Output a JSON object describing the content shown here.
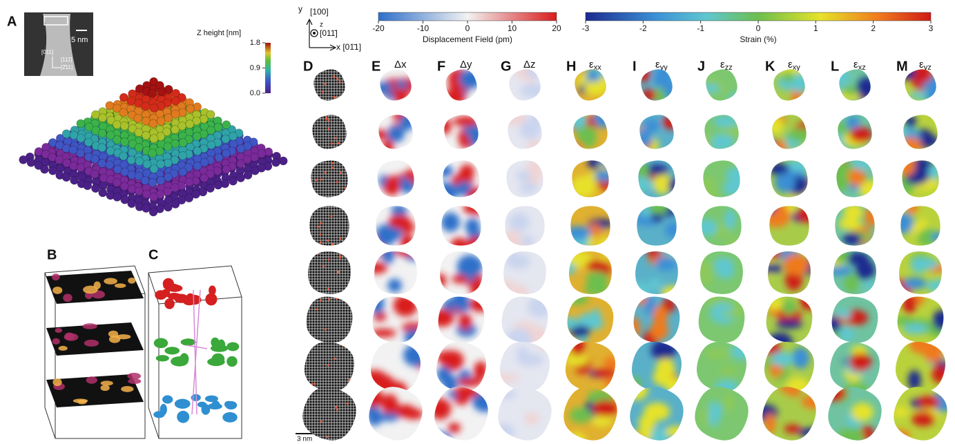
{
  "panel_labels": [
    "A",
    "B",
    "C"
  ],
  "panel_a": {
    "scale_bar": "5 nm",
    "directions": [
      "[011]",
      "[111̄]",
      "[2̄11]"
    ],
    "colorbar": {
      "label": "Z height [nm]",
      "lim": [
        0,
        1.8
      ],
      "ticks": [
        1.8,
        0.9,
        {
          "value": 0,
          "label": "0.0"
        }
      ]
    }
  },
  "axes": {
    "y": "y",
    "y_dir": "[100]",
    "z": "z",
    "z_dir": "[011̄]",
    "x": "x [01̄1]"
  },
  "colorbars": [
    {
      "label": "Displacement Field (pm)",
      "lim": [
        -20,
        20
      ],
      "ticks": [
        -20,
        -10,
        0,
        10,
        20
      ]
    },
    {
      "label": "Strain (%)",
      "lim": [
        -3,
        3
      ],
      "ticks": [
        -3,
        -2,
        -1,
        0,
        1,
        2,
        3
      ]
    }
  ],
  "columns": [
    {
      "letter": "D"
    },
    {
      "letter": "E",
      "symbol": "Δx"
    },
    {
      "letter": "F",
      "symbol": "Δy"
    },
    {
      "letter": "G",
      "symbol": "Δz"
    },
    {
      "letter": "H",
      "symbol": "ε",
      "sub": "xx"
    },
    {
      "letter": "I",
      "symbol": "ε",
      "sub": "yy"
    },
    {
      "letter": "J",
      "symbol": "ε",
      "sub": "zz"
    },
    {
      "letter": "K",
      "symbol": "ε",
      "sub": "xy"
    },
    {
      "letter": "L",
      "symbol": "ε",
      "sub": "xz"
    },
    {
      "letter": "M",
      "symbol": "ε",
      "sub": "yz"
    }
  ],
  "scale_bar_d": "3 nm"
}
